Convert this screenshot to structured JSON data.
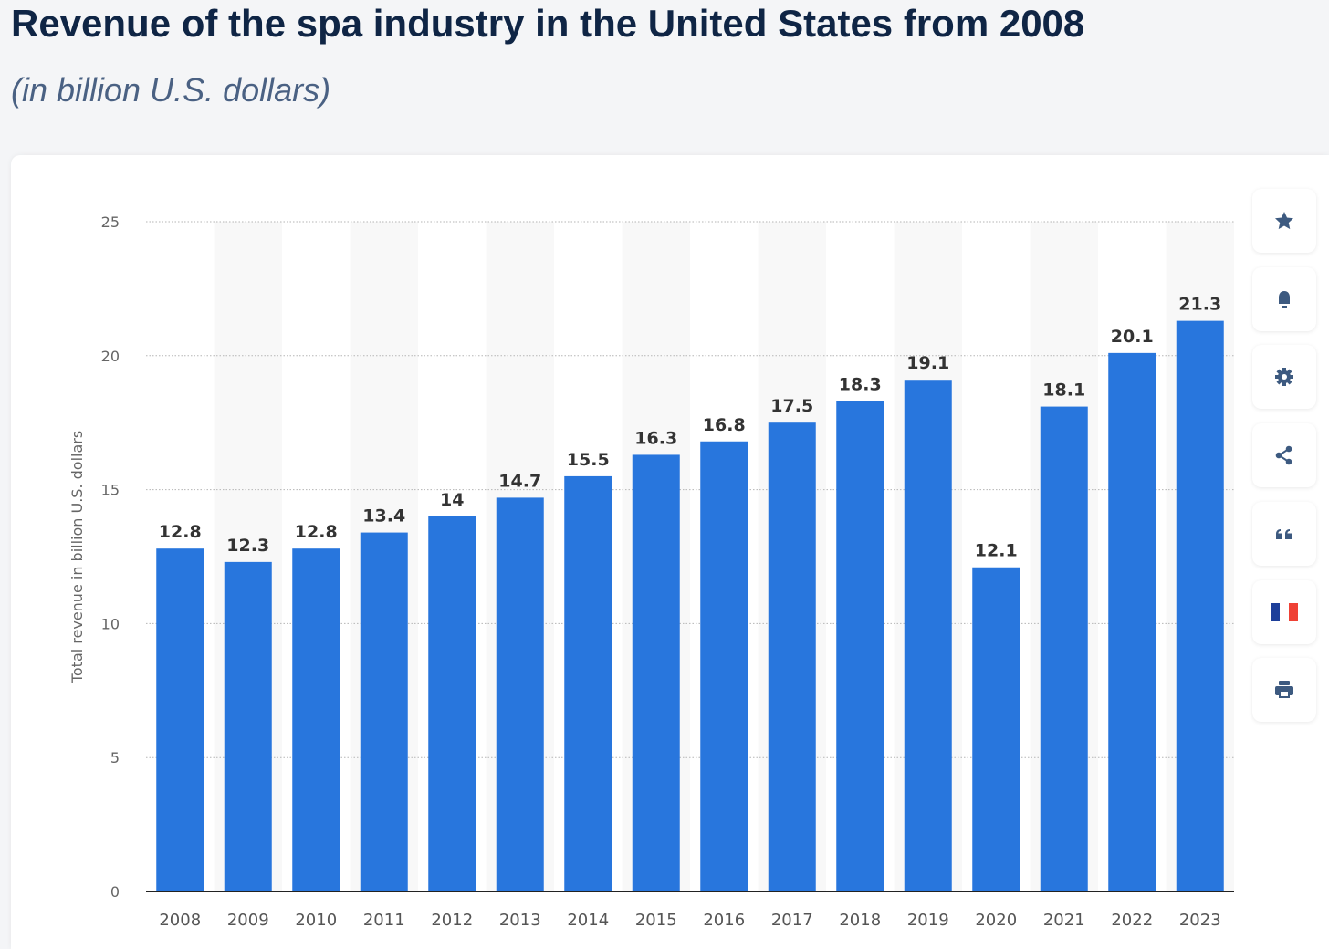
{
  "header": {
    "title": "Revenue of the spa industry in the United States from 2008",
    "subtitle": "(in billion U.S. dollars)"
  },
  "toolbar": {
    "icons": [
      "star-icon",
      "bell-icon",
      "gear-icon",
      "share-icon",
      "quote-icon",
      "french-flag-icon",
      "print-icon"
    ]
  },
  "colors": {
    "bar": "#2876dd",
    "text_dark": "#0f2545",
    "icon": "#3d5a80"
  },
  "chart_data": {
    "type": "bar",
    "title": "Revenue of the spa industry in the United States from 2008",
    "subtitle": "(in billion U.S. dollars)",
    "xlabel": "",
    "ylabel": "Total revenue in billion U.S. dollars",
    "categories": [
      "2008",
      "2009",
      "2010",
      "2011",
      "2012",
      "2013",
      "2014",
      "2015",
      "2016",
      "2017",
      "2018",
      "2019",
      "2020",
      "2021",
      "2022",
      "2023"
    ],
    "values": [
      12.8,
      12.3,
      12.8,
      13.4,
      14,
      14.7,
      15.5,
      16.3,
      16.8,
      17.5,
      18.3,
      19.1,
      12.1,
      18.1,
      20.1,
      21.3
    ],
    "value_labels": [
      "12.8",
      "12.3",
      "12.8",
      "13.4",
      "14",
      "14.7",
      "15.5",
      "16.3",
      "16.8",
      "17.5",
      "18.3",
      "19.1",
      "12.1",
      "18.1",
      "20.1",
      "21.3"
    ],
    "ylim": [
      0,
      25
    ],
    "yticks": [
      "0",
      "5",
      "10",
      "15",
      "20",
      "25"
    ],
    "grid": true,
    "legend": "none"
  }
}
